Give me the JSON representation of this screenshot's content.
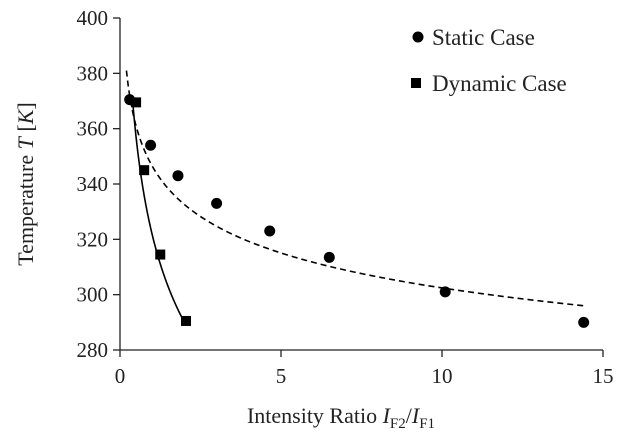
{
  "chart_data": {
    "type": "scatter",
    "xlim": [
      0,
      15
    ],
    "ylim": [
      280,
      400
    ],
    "x_ticks": [
      0,
      5,
      10,
      15
    ],
    "x_tick_labels": [
      "0",
      "5",
      "10",
      "15"
    ],
    "y_ticks": [
      280,
      300,
      320,
      340,
      360,
      380,
      400
    ],
    "y_tick_labels": [
      "280",
      "300",
      "320",
      "340",
      "360",
      "380",
      "400"
    ],
    "xlabel": {
      "prefix": "Intensity Ratio ",
      "num_var": "I",
      "num_sub": "F2",
      "slash": "/",
      "den_var": "I",
      "den_sub": "F1"
    },
    "ylabel": {
      "prefix": "Temperature ",
      "var": "T",
      "unit": "[K]",
      "unit_open": "[",
      "unit_var": "K",
      "unit_close": "]"
    },
    "grid": false,
    "legend_position": "top-right",
    "series": [
      {
        "name": "Static Case",
        "marker": "circle",
        "color": "#000000",
        "points": [
          {
            "x": 0.3,
            "y": 370.5
          },
          {
            "x": 0.95,
            "y": 354
          },
          {
            "x": 1.8,
            "y": 343
          },
          {
            "x": 3.0,
            "y": 333
          },
          {
            "x": 4.65,
            "y": 323
          },
          {
            "x": 6.5,
            "y": 313.5
          },
          {
            "x": 10.1,
            "y": 301
          },
          {
            "x": 14.4,
            "y": 290
          }
        ],
        "fit": {
          "style": "dashed",
          "x": [
            0.2,
            14.4
          ],
          "y": [
            381,
            296
          ]
        }
      },
      {
        "name": "Dynamic Case",
        "marker": "square",
        "color": "#000000",
        "points": [
          {
            "x": 0.5,
            "y": 369.5
          },
          {
            "x": 0.75,
            "y": 345
          },
          {
            "x": 1.25,
            "y": 314.5
          },
          {
            "x": 2.05,
            "y": 290.5
          }
        ],
        "fit": {
          "style": "solid",
          "x": [
            0.4,
            2.0
          ],
          "y": [
            369,
            290
          ]
        }
      }
    ]
  }
}
